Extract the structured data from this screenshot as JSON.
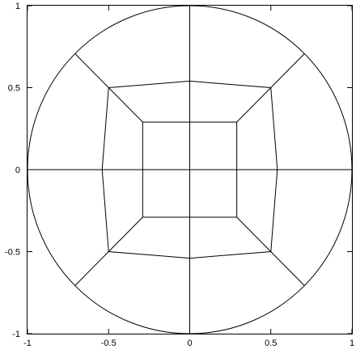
{
  "chart_data": {
    "type": "diagram",
    "title": "",
    "xlim": [
      -1,
      1
    ],
    "ylim": [
      -1,
      1
    ],
    "x_ticks": [
      {
        "value": -1,
        "label": "-1"
      },
      {
        "value": -0.5,
        "label": "-0.5"
      },
      {
        "value": 0,
        "label": "0"
      },
      {
        "value": 0.5,
        "label": "0.5"
      },
      {
        "value": 1,
        "label": "1"
      }
    ],
    "y_ticks": [
      {
        "value": -1,
        "label": "-1"
      },
      {
        "value": -0.5,
        "label": "-0.5"
      },
      {
        "value": 0,
        "label": "0"
      },
      {
        "value": 0.5,
        "label": "0.5"
      },
      {
        "value": 1,
        "label": "1"
      }
    ],
    "circle": {
      "center": [
        0,
        0
      ],
      "radius": 1
    },
    "inner_square": [
      [
        -0.29,
        -0.29
      ],
      [
        0.29,
        -0.29
      ],
      [
        0.29,
        0.29
      ],
      [
        -0.29,
        0.29
      ]
    ],
    "middle_curved_square": [
      [
        -0.5,
        0.5
      ],
      [
        -0.25,
        0.52
      ],
      [
        0,
        0.54
      ],
      [
        0.25,
        0.52
      ],
      [
        0.5,
        0.5
      ],
      [
        0.52,
        0.25
      ],
      [
        0.54,
        0
      ],
      [
        0.52,
        -0.25
      ],
      [
        0.5,
        -0.5
      ],
      [
        0.25,
        -0.52
      ],
      [
        0,
        -0.54
      ],
      [
        -0.25,
        -0.52
      ],
      [
        -0.5,
        -0.5
      ],
      [
        -0.52,
        -0.25
      ],
      [
        -0.54,
        0
      ],
      [
        -0.52,
        0.25
      ]
    ],
    "segments": [
      {
        "name": "horizontal-axis-line",
        "from": [
          -1,
          0
        ],
        "to": [
          1,
          0
        ]
      },
      {
        "name": "vertical-axis-line",
        "from": [
          0,
          -1
        ],
        "to": [
          0,
          1
        ]
      },
      {
        "name": "diagonal-top-left-outer",
        "from": [
          -0.707,
          0.707
        ],
        "to": [
          -0.5,
          0.5
        ]
      },
      {
        "name": "diagonal-top-right-outer",
        "from": [
          0.707,
          0.707
        ],
        "to": [
          0.5,
          0.5
        ]
      },
      {
        "name": "diagonal-bottom-left-outer",
        "from": [
          -0.707,
          -0.707
        ],
        "to": [
          -0.5,
          -0.5
        ]
      },
      {
        "name": "diagonal-bottom-right-outer",
        "from": [
          0.707,
          -0.707
        ],
        "to": [
          0.5,
          -0.5
        ]
      },
      {
        "name": "diagonal-top-left-inner",
        "from": [
          -0.5,
          0.5
        ],
        "to": [
          -0.29,
          0.29
        ]
      },
      {
        "name": "diagonal-top-right-inner",
        "from": [
          0.5,
          0.5
        ],
        "to": [
          0.29,
          0.29
        ]
      },
      {
        "name": "diagonal-bottom-left-inner",
        "from": [
          -0.5,
          -0.5
        ],
        "to": [
          -0.29,
          -0.29
        ]
      },
      {
        "name": "diagonal-bottom-right-inner",
        "from": [
          0.5,
          -0.5
        ],
        "to": [
          0.29,
          -0.29
        ]
      }
    ]
  }
}
